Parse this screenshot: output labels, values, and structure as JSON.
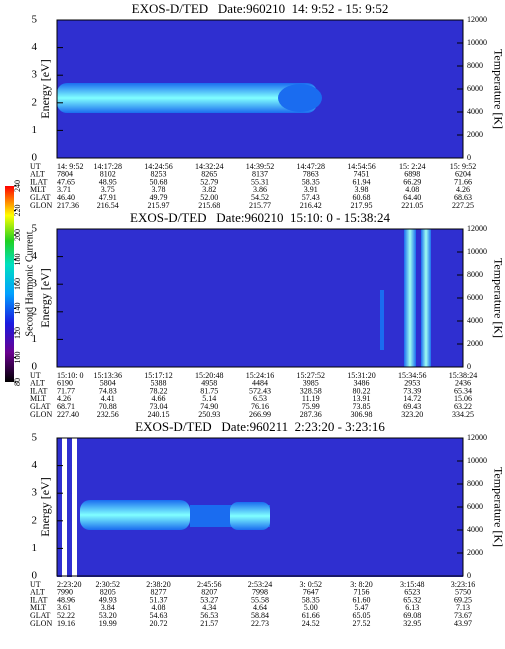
{
  "colorbar": {
    "label": "Second Harmonic Current",
    "lim": [
      80,
      240
    ],
    "ticks": [
      80,
      100,
      120,
      140,
      160,
      180,
      200,
      220,
      240
    ]
  },
  "chart_data": [
    {
      "type": "spectrogram",
      "title": "EXOS-D/TED   Date:960210  14: 9:52 - 15: 9:52",
      "ylabel": "Energy [eV]",
      "y2label": "Temperature [K]",
      "ylim": [
        0,
        5
      ],
      "yticks": [
        0,
        1,
        2,
        3,
        4,
        5
      ],
      "y2lim": [
        0,
        12000
      ],
      "y2ticks": [
        0,
        2000,
        4000,
        6000,
        8000,
        10000,
        12000
      ],
      "table": {
        "row_labels": [
          "UT",
          "ALT",
          "ILAT",
          "MLT",
          "GLAT",
          "GLON"
        ],
        "rows": [
          [
            "14: 9:52",
            "14:17:28",
            "14:24:56",
            "14:32:24",
            "14:39:52",
            "14:47:28",
            "14:54:56",
            "15: 2:24",
            "15: 9:52"
          ],
          [
            "7804",
            "8102",
            "8253",
            "8265",
            "8137",
            "7863",
            "7451",
            "6898",
            "6204"
          ],
          [
            "47.65",
            "48.95",
            "50.68",
            "52.79",
            "55.31",
            "58.35",
            "61.94",
            "66.29",
            "71.66"
          ],
          [
            "3.71",
            "3.75",
            "3.78",
            "3.82",
            "3.86",
            "3.91",
            "3.98",
            "4.08",
            "4.26"
          ],
          [
            "46.40",
            "47.91",
            "49.79",
            "52.00",
            "54.52",
            "57.43",
            "60.68",
            "64.40",
            "68.63"
          ],
          [
            "217.36",
            "216.54",
            "215.97",
            "215.68",
            "215.77",
            "216.42",
            "217.95",
            "221.05",
            "227.25"
          ]
        ]
      }
    },
    {
      "type": "spectrogram",
      "title": "EXOS-D/TED   Date:960210  15:10: 0 - 15:38:24",
      "ylabel": "Energy [eV]",
      "y2label": "Temperature [K]",
      "ylim": [
        0,
        5
      ],
      "yticks": [
        0,
        1,
        2,
        3,
        4,
        5
      ],
      "y2lim": [
        0,
        12000
      ],
      "y2ticks": [
        0,
        2000,
        4000,
        6000,
        8000,
        10000,
        12000
      ],
      "table": {
        "row_labels": [
          "UT",
          "ALT",
          "ILAT",
          "MLT",
          "GLAT",
          "GLON"
        ],
        "rows": [
          [
            "15:10: 0",
            "15:13:36",
            "15:17:12",
            "15:20:48",
            "15:24:16",
            "15:27:52",
            "15:31:20",
            "15:34:56",
            "15:38:24"
          ],
          [
            "6190",
            "5804",
            "5388",
            "4958",
            "4484",
            "3985",
            "3486",
            "2953",
            "2436"
          ],
          [
            "71.77",
            "74.83",
            "78.22",
            "81.75",
            "572.43",
            "328.58",
            "80.22",
            "73.39",
            "65.34"
          ],
          [
            "4.26",
            "4.41",
            "4.66",
            "5.14",
            "6.53",
            "11.19",
            "13.91",
            "14.72",
            "15.06"
          ],
          [
            "68.71",
            "70.88",
            "73.04",
            "74.90",
            "76.16",
            "75.99",
            "73.85",
            "69.43",
            "63.22"
          ],
          [
            "227.40",
            "232.56",
            "240.15",
            "250.93",
            "266.99",
            "287.36",
            "306.98",
            "323.20",
            "334.25"
          ]
        ]
      }
    },
    {
      "type": "spectrogram",
      "title": "EXOS-D/TED   Date:960211  2:23:20 - 3:23:16",
      "ylabel": "Energy [eV]",
      "y2label": "Temperature [K]",
      "ylim": [
        0,
        5
      ],
      "yticks": [
        0,
        1,
        2,
        3,
        4,
        5
      ],
      "y2lim": [
        0,
        12000
      ],
      "y2ticks": [
        0,
        2000,
        4000,
        6000,
        8000,
        10000,
        12000
      ],
      "table": {
        "row_labels": [
          "UT",
          "ALT",
          "ILAT",
          "MLT",
          "GLAT",
          "GLON"
        ],
        "rows": [
          [
            "2:23:20",
            "2:30:52",
            "2:38:20",
            "2:45:56",
            "2:53:24",
            "3: 0:52",
            "3: 8:20",
            "3:15:48",
            "3:23:16"
          ],
          [
            "7990",
            "8205",
            "8277",
            "8207",
            "7998",
            "7647",
            "7156",
            "6523",
            "5750"
          ],
          [
            "48.96",
            "49.93",
            "51.37",
            "53.27",
            "55.58",
            "58.35",
            "61.60",
            "65.32",
            "69.25"
          ],
          [
            "3.61",
            "3.84",
            "4.08",
            "4.34",
            "4.64",
            "5.00",
            "5.47",
            "6.13",
            "7.13"
          ],
          [
            "52.22",
            "53.20",
            "54.63",
            "56.53",
            "58.84",
            "61.66",
            "65.05",
            "69.08",
            "73.67"
          ],
          [
            "19.16",
            "19.99",
            "20.72",
            "21.57",
            "22.73",
            "24.52",
            "27.52",
            "32.95",
            "43.97"
          ]
        ]
      }
    }
  ]
}
